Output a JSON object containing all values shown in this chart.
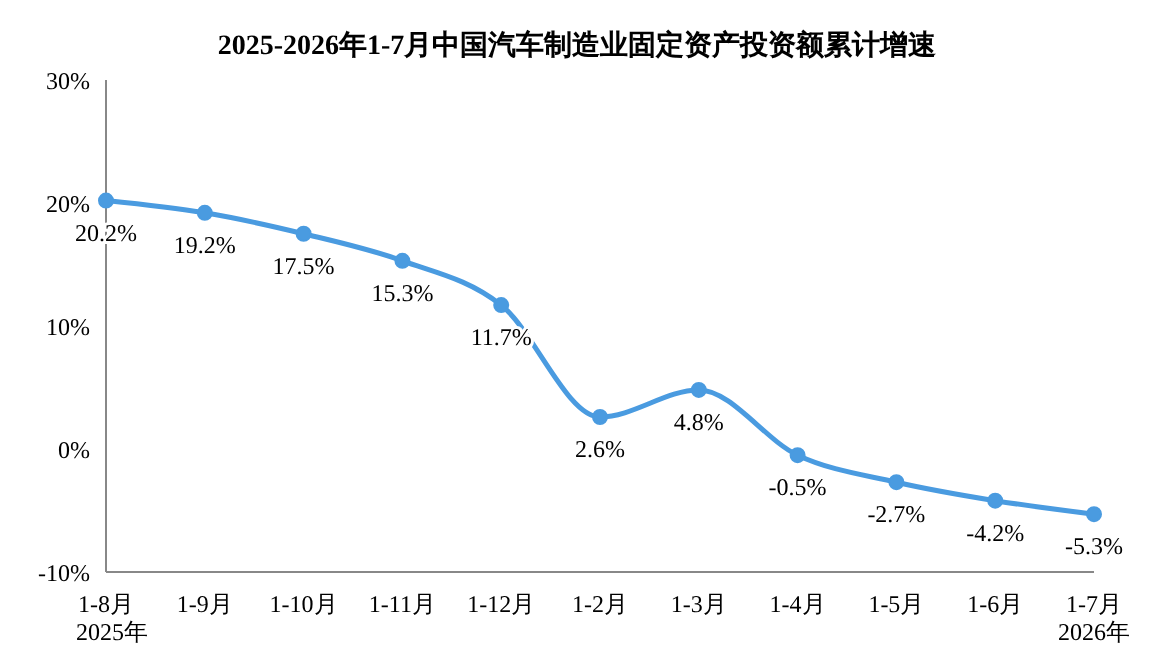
{
  "chart_data": {
    "type": "line",
    "title": "2025-2026年1-7月中国汽车制造业固定资产投资额累计增速",
    "categories": [
      "1-8月",
      "1-9月",
      "1-10月",
      "1-11月",
      "1-12月",
      "1-2月",
      "1-3月",
      "1-4月",
      "1-5月",
      "1-6月",
      "1-7月"
    ],
    "series": [
      {
        "color": "#4a9be0",
        "values": [
          20.2,
          19.2,
          17.5,
          15.3,
          11.7,
          2.6,
          4.8,
          -0.5,
          -2.7,
          -4.2,
          -5.3
        ],
        "value_labels": [
          "20.2%",
          "19.2%",
          "17.5%",
          "15.3%",
          "11.7%",
          "2.6%",
          "4.8%",
          "-0.5%",
          "-2.7%",
          "-4.2%",
          "-5.3%"
        ]
      }
    ],
    "ylim": [
      -10,
      30
    ],
    "yticks": [
      {
        "value": -10,
        "label": "-10%"
      },
      {
        "value": 0,
        "label": "0%"
      },
      {
        "value": 10,
        "label": "10%"
      },
      {
        "value": 20,
        "label": "20%"
      },
      {
        "value": 30,
        "label": "30%"
      }
    ],
    "marker": "circle",
    "grid": false,
    "annotations": [
      "2025年",
      "2026年"
    ]
  }
}
